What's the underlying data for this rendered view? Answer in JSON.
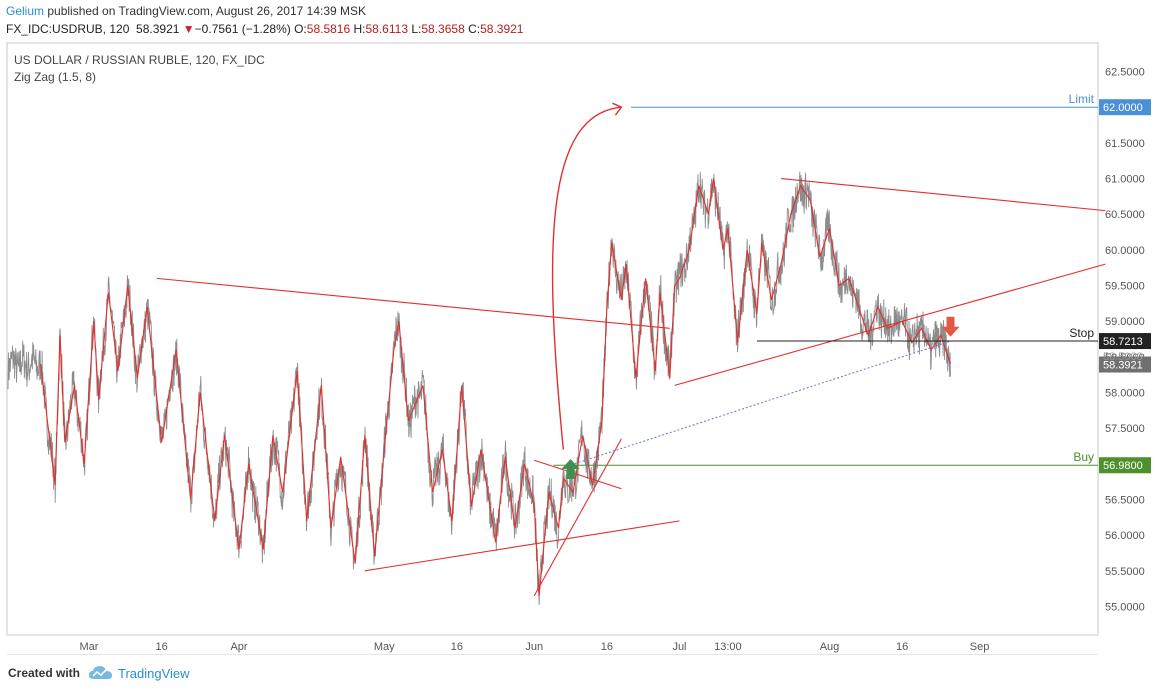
{
  "header": {
    "author": "Gelium",
    "published_text": " published on TradingView.com, August 26, 2017 14:39 MSK",
    "symbol": "FX_IDC:USDRUB, 120",
    "last": "58.3921",
    "change_arrow": "▼",
    "change": "−0.7561 (−1.28%)",
    "o_label": "O:",
    "o_value": "58.5816",
    "h_label": "H:",
    "h_value": "58.6113",
    "l_label": "L:",
    "l_value": "58.3658",
    "c_label": "C:",
    "c_value": "58.3921"
  },
  "legend": {
    "title": "US DOLLAR / RUSSIAN RUBLE, 120, FX_IDC",
    "indicator": "Zig Zag (1.5, 8)"
  },
  "footer": {
    "created_with": "Created with",
    "brand": "TradingView",
    "logo_icon": "tradingview-cloud-icon"
  },
  "colors": {
    "price": "#8c8c8c",
    "drawing": "#e0302f",
    "limit": "#4a90d9",
    "buy": "#4e8f2e",
    "stop": "#222222",
    "arrow_up": "#3f8f4f",
    "arrow_down": "#e05a45",
    "axis_text": "#555555",
    "border": "#c8c8c8"
  },
  "chart_data": {
    "type": "line",
    "instrument": "USDRUB",
    "timeframe": "120",
    "ylim": [
      54.6,
      62.9
    ],
    "y_ticks": [
      55.0,
      55.5,
      56.0,
      56.5,
      57.0,
      57.5,
      58.0,
      58.5,
      59.0,
      59.5,
      60.0,
      60.5,
      61.0,
      61.5,
      62.0,
      62.5
    ],
    "x_labels": [
      {
        "label": "Mar",
        "day": 0
      },
      {
        "label": "16",
        "day": 15
      },
      {
        "label": "Apr",
        "day": 31
      },
      {
        "label": "May",
        "day": 61
      },
      {
        "label": "16",
        "day": 76
      },
      {
        "label": "Jun",
        "day": 92
      },
      {
        "label": "16",
        "day": 107
      },
      {
        "label": "Jul",
        "day": 122
      },
      {
        "label": "13:00",
        "day": 132
      },
      {
        "label": "Aug",
        "day": 153
      },
      {
        "label": "16",
        "day": 168
      },
      {
        "label": "Sep",
        "day": 184
      }
    ],
    "series": [
      {
        "kind": "zigzag",
        "indicator": "Zig Zag (1.5, 8)",
        "x": [
          -10,
          -7,
          -6,
          -5,
          -3,
          -1,
          1,
          2,
          4,
          6,
          8,
          10,
          12,
          15,
          18,
          21,
          23,
          26,
          28,
          31,
          33,
          36,
          38,
          40,
          43,
          45,
          48,
          50,
          52,
          55,
          57,
          59,
          61,
          63,
          64,
          66,
          69,
          71,
          73,
          75,
          77,
          79,
          81,
          84,
          86,
          88,
          90,
          92,
          93,
          95,
          97,
          98,
          100,
          102,
          104,
          106,
          107,
          108,
          110,
          111,
          113,
          115,
          117,
          118,
          120,
          121,
          122,
          124,
          126,
          128,
          129,
          131,
          132,
          134,
          136,
          138,
          139,
          141,
          143,
          145,
          147,
          149,
          151,
          153,
          155,
          157,
          159,
          161,
          163,
          165,
          168,
          170,
          172,
          174,
          176,
          178
        ],
        "values": [
          58.4,
          56.7,
          58.8,
          57.3,
          58.1,
          57.0,
          59.0,
          57.9,
          59.4,
          58.3,
          59.5,
          58.2,
          59.2,
          57.3,
          58.6,
          56.5,
          58.0,
          56.2,
          57.4,
          55.8,
          57.0,
          55.8,
          57.4,
          56.6,
          58.3,
          56.2,
          58.1,
          56.1,
          57.1,
          55.6,
          57.4,
          55.7,
          57.2,
          58.6,
          59.0,
          57.6,
          58.1,
          56.6,
          57.2,
          56.2,
          58.1,
          56.4,
          57.2,
          55.9,
          57.1,
          56.1,
          57.0,
          56.4,
          55.15,
          56.6,
          56.1,
          56.8,
          56.6,
          57.4,
          56.7,
          57.6,
          59.2,
          60.1,
          59.3,
          59.8,
          58.2,
          59.6,
          58.3,
          59.4,
          58.2,
          59.5,
          59.6,
          60.0,
          60.9,
          60.5,
          61.0,
          60.0,
          60.3,
          58.7,
          60.0,
          59.1,
          60.1,
          59.3,
          59.8,
          60.5,
          60.9,
          60.7,
          59.9,
          60.3,
          59.5,
          59.6,
          59.2,
          58.8,
          59.2,
          58.9,
          59.0,
          58.7,
          58.9,
          58.6,
          58.8,
          58.4
        ]
      }
    ],
    "lines": [
      {
        "name": "Limit",
        "value": 62.0,
        "tag": "62.0000"
      },
      {
        "name": "Stop",
        "value": 58.7213,
        "tag": "58.7213"
      },
      {
        "name": "Buy",
        "value": 56.98,
        "tag": "56.9800"
      }
    ],
    "price_tags": [
      {
        "value": 58.3921,
        "tag": "58.3921"
      },
      {
        "value": 58.5,
        "tag": "58.5000"
      }
    ]
  }
}
